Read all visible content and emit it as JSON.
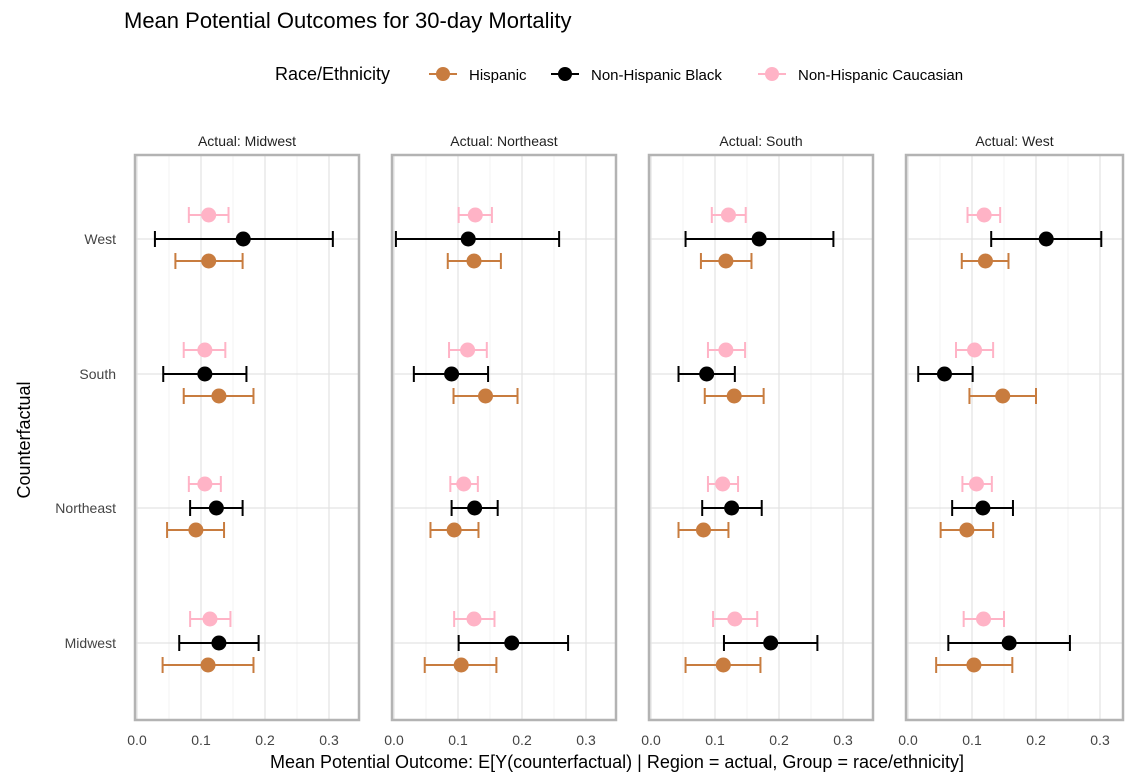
{
  "chart_data": {
    "type": "scatter",
    "title": "Mean Potential Outcomes for 30-day Mortality",
    "xlabel": "Mean Potential Outcome: E[Y(counterfactual) | Region = actual, Group = race/ethnicity]",
    "ylabel": "Counterfactual",
    "xlim": [
      0.0,
      0.35
    ],
    "x_ticks": [
      0.0,
      0.1,
      0.2,
      0.3
    ],
    "x_tick_labels": [
      "0.0",
      "0.1",
      "0.2",
      "0.3"
    ],
    "categories": [
      "West",
      "South",
      "Northeast",
      "Midwest"
    ],
    "grid": true,
    "legend": {
      "title": "Race/Ethnicity",
      "position": "top"
    },
    "colors": {
      "Hispanic": "#c87c3f",
      "Non-Hispanic Black": "#000000",
      "Non-Hispanic Caucasian": "#ffb3c6"
    },
    "facets": [
      {
        "label": "Actual: Midwest",
        "series": [
          {
            "name": "Hispanic",
            "points": [
              {
                "category": "West",
                "value": 0.112,
                "lower": 0.06,
                "upper": 0.165
              },
              {
                "category": "South",
                "value": 0.128,
                "lower": 0.073,
                "upper": 0.182
              },
              {
                "category": "Northeast",
                "value": 0.092,
                "lower": 0.047,
                "upper": 0.136
              },
              {
                "category": "Midwest",
                "value": 0.111,
                "lower": 0.04,
                "upper": 0.182
              }
            ]
          },
          {
            "name": "Non-Hispanic Black",
            "points": [
              {
                "category": "West",
                "value": 0.166,
                "lower": 0.028,
                "upper": 0.306
              },
              {
                "category": "South",
                "value": 0.106,
                "lower": 0.041,
                "upper": 0.171
              },
              {
                "category": "Northeast",
                "value": 0.124,
                "lower": 0.083,
                "upper": 0.165
              },
              {
                "category": "Midwest",
                "value": 0.128,
                "lower": 0.066,
                "upper": 0.19
              }
            ]
          },
          {
            "name": "Non-Hispanic Caucasian",
            "points": [
              {
                "category": "West",
                "value": 0.112,
                "lower": 0.081,
                "upper": 0.143
              },
              {
                "category": "South",
                "value": 0.106,
                "lower": 0.073,
                "upper": 0.138
              },
              {
                "category": "Northeast",
                "value": 0.106,
                "lower": 0.081,
                "upper": 0.131
              },
              {
                "category": "Midwest",
                "value": 0.114,
                "lower": 0.083,
                "upper": 0.146
              }
            ]
          }
        ]
      },
      {
        "label": "Actual: Northeast",
        "series": [
          {
            "name": "Hispanic",
            "points": [
              {
                "category": "West",
                "value": 0.125,
                "lower": 0.084,
                "upper": 0.167
              },
              {
                "category": "South",
                "value": 0.143,
                "lower": 0.093,
                "upper": 0.193
              },
              {
                "category": "Northeast",
                "value": 0.094,
                "lower": 0.057,
                "upper": 0.132
              },
              {
                "category": "Midwest",
                "value": 0.105,
                "lower": 0.048,
                "upper": 0.16
              }
            ]
          },
          {
            "name": "Non-Hispanic Black",
            "points": [
              {
                "category": "West",
                "value": 0.116,
                "lower": 0.003,
                "upper": 0.258
              },
              {
                "category": "South",
                "value": 0.09,
                "lower": 0.031,
                "upper": 0.147
              },
              {
                "category": "Northeast",
                "value": 0.126,
                "lower": 0.09,
                "upper": 0.162
              },
              {
                "category": "Midwest",
                "value": 0.184,
                "lower": 0.101,
                "upper": 0.272
              }
            ]
          },
          {
            "name": "Non-Hispanic Caucasian",
            "points": [
              {
                "category": "West",
                "value": 0.127,
                "lower": 0.101,
                "upper": 0.153
              },
              {
                "category": "South",
                "value": 0.115,
                "lower": 0.086,
                "upper": 0.145
              },
              {
                "category": "Northeast",
                "value": 0.109,
                "lower": 0.088,
                "upper": 0.131
              },
              {
                "category": "Midwest",
                "value": 0.125,
                "lower": 0.094,
                "upper": 0.157
              }
            ]
          }
        ]
      },
      {
        "label": "Actual: South",
        "series": [
          {
            "name": "Hispanic",
            "points": [
              {
                "category": "West",
                "value": 0.117,
                "lower": 0.078,
                "upper": 0.157
              },
              {
                "category": "South",
                "value": 0.13,
                "lower": 0.084,
                "upper": 0.176
              },
              {
                "category": "Northeast",
                "value": 0.082,
                "lower": 0.043,
                "upper": 0.121
              },
              {
                "category": "Midwest",
                "value": 0.113,
                "lower": 0.054,
                "upper": 0.171
              }
            ]
          },
          {
            "name": "Non-Hispanic Black",
            "points": [
              {
                "category": "West",
                "value": 0.169,
                "lower": 0.054,
                "upper": 0.285
              },
              {
                "category": "South",
                "value": 0.087,
                "lower": 0.043,
                "upper": 0.131
              },
              {
                "category": "Northeast",
                "value": 0.126,
                "lower": 0.08,
                "upper": 0.173
              },
              {
                "category": "Midwest",
                "value": 0.187,
                "lower": 0.114,
                "upper": 0.26
              }
            ]
          },
          {
            "name": "Non-Hispanic Caucasian",
            "points": [
              {
                "category": "West",
                "value": 0.121,
                "lower": 0.095,
                "upper": 0.148
              },
              {
                "category": "South",
                "value": 0.117,
                "lower": 0.089,
                "upper": 0.147
              },
              {
                "category": "Northeast",
                "value": 0.112,
                "lower": 0.089,
                "upper": 0.136
              },
              {
                "category": "Midwest",
                "value": 0.131,
                "lower": 0.097,
                "upper": 0.166
              }
            ]
          }
        ]
      },
      {
        "label": "Actual: West",
        "series": [
          {
            "name": "Hispanic",
            "points": [
              {
                "category": "West",
                "value": 0.121,
                "lower": 0.084,
                "upper": 0.157
              },
              {
                "category": "South",
                "value": 0.148,
                "lower": 0.096,
                "upper": 0.2
              },
              {
                "category": "Northeast",
                "value": 0.092,
                "lower": 0.051,
                "upper": 0.133
              },
              {
                "category": "Midwest",
                "value": 0.103,
                "lower": 0.044,
                "upper": 0.163
              }
            ]
          },
          {
            "name": "Non-Hispanic Black",
            "points": [
              {
                "category": "West",
                "value": 0.216,
                "lower": 0.13,
                "upper": 0.302
              },
              {
                "category": "South",
                "value": 0.057,
                "lower": 0.016,
                "upper": 0.101
              },
              {
                "category": "Northeast",
                "value": 0.117,
                "lower": 0.069,
                "upper": 0.164
              },
              {
                "category": "Midwest",
                "value": 0.158,
                "lower": 0.063,
                "upper": 0.253
              }
            ]
          },
          {
            "name": "Non-Hispanic Caucasian",
            "points": [
              {
                "category": "West",
                "value": 0.119,
                "lower": 0.093,
                "upper": 0.144
              },
              {
                "category": "South",
                "value": 0.104,
                "lower": 0.075,
                "upper": 0.133
              },
              {
                "category": "Northeast",
                "value": 0.107,
                "lower": 0.085,
                "upper": 0.131
              },
              {
                "category": "Midwest",
                "value": 0.118,
                "lower": 0.087,
                "upper": 0.15
              }
            ]
          }
        ]
      }
    ]
  }
}
